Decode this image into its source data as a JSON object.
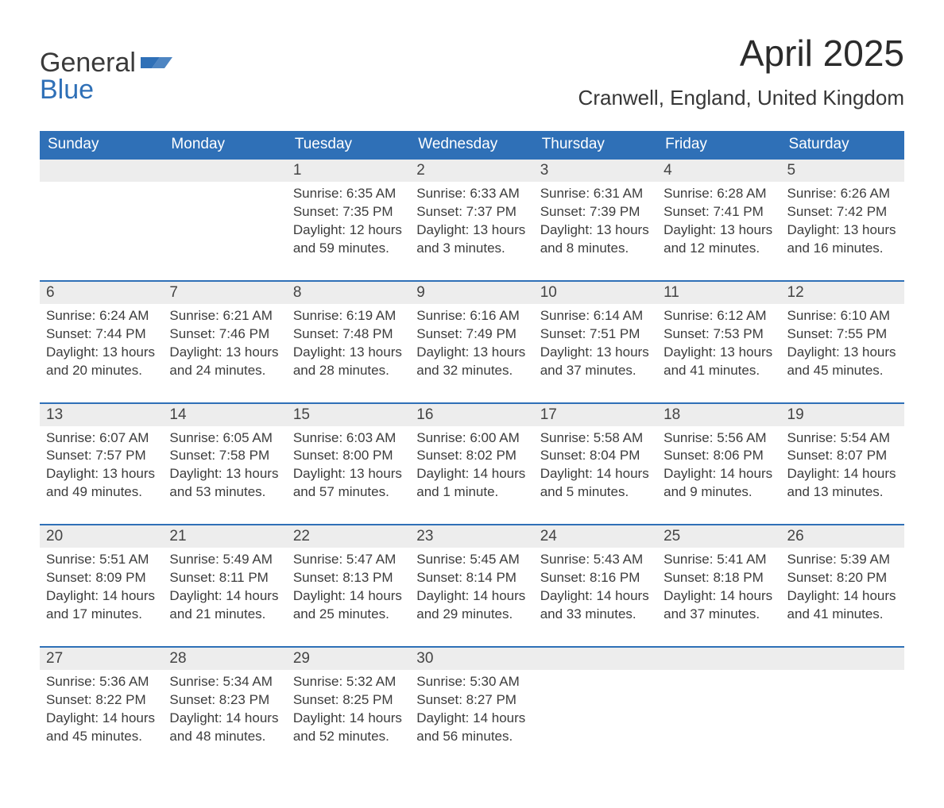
{
  "logo": {
    "text1": "General",
    "text2": "Blue",
    "icon_color": "#2f70b7"
  },
  "header": {
    "month": "April 2025",
    "location": "Cranwell, England, United Kingdom"
  },
  "colors": {
    "header_bg": "#2f70b7",
    "header_text": "#ffffff",
    "daynum_bg": "#ededed",
    "row_border": "#2f70b7",
    "body_text": "#3c3c3c"
  },
  "weekday_labels": [
    "Sunday",
    "Monday",
    "Tuesday",
    "Wednesday",
    "Thursday",
    "Friday",
    "Saturday"
  ],
  "weeks": [
    [
      {
        "day": "",
        "lines": []
      },
      {
        "day": "",
        "lines": []
      },
      {
        "day": "1",
        "lines": [
          "Sunrise: 6:35 AM",
          "Sunset: 7:35 PM",
          "Daylight: 12 hours and 59 minutes."
        ]
      },
      {
        "day": "2",
        "lines": [
          "Sunrise: 6:33 AM",
          "Sunset: 7:37 PM",
          "Daylight: 13 hours and 3 minutes."
        ]
      },
      {
        "day": "3",
        "lines": [
          "Sunrise: 6:31 AM",
          "Sunset: 7:39 PM",
          "Daylight: 13 hours and 8 minutes."
        ]
      },
      {
        "day": "4",
        "lines": [
          "Sunrise: 6:28 AM",
          "Sunset: 7:41 PM",
          "Daylight: 13 hours and 12 minutes."
        ]
      },
      {
        "day": "5",
        "lines": [
          "Sunrise: 6:26 AM",
          "Sunset: 7:42 PM",
          "Daylight: 13 hours and 16 minutes."
        ]
      }
    ],
    [
      {
        "day": "6",
        "lines": [
          "Sunrise: 6:24 AM",
          "Sunset: 7:44 PM",
          "Daylight: 13 hours and 20 minutes."
        ]
      },
      {
        "day": "7",
        "lines": [
          "Sunrise: 6:21 AM",
          "Sunset: 7:46 PM",
          "Daylight: 13 hours and 24 minutes."
        ]
      },
      {
        "day": "8",
        "lines": [
          "Sunrise: 6:19 AM",
          "Sunset: 7:48 PM",
          "Daylight: 13 hours and 28 minutes."
        ]
      },
      {
        "day": "9",
        "lines": [
          "Sunrise: 6:16 AM",
          "Sunset: 7:49 PM",
          "Daylight: 13 hours and 32 minutes."
        ]
      },
      {
        "day": "10",
        "lines": [
          "Sunrise: 6:14 AM",
          "Sunset: 7:51 PM",
          "Daylight: 13 hours and 37 minutes."
        ]
      },
      {
        "day": "11",
        "lines": [
          "Sunrise: 6:12 AM",
          "Sunset: 7:53 PM",
          "Daylight: 13 hours and 41 minutes."
        ]
      },
      {
        "day": "12",
        "lines": [
          "Sunrise: 6:10 AM",
          "Sunset: 7:55 PM",
          "Daylight: 13 hours and 45 minutes."
        ]
      }
    ],
    [
      {
        "day": "13",
        "lines": [
          "Sunrise: 6:07 AM",
          "Sunset: 7:57 PM",
          "Daylight: 13 hours and 49 minutes."
        ]
      },
      {
        "day": "14",
        "lines": [
          "Sunrise: 6:05 AM",
          "Sunset: 7:58 PM",
          "Daylight: 13 hours and 53 minutes."
        ]
      },
      {
        "day": "15",
        "lines": [
          "Sunrise: 6:03 AM",
          "Sunset: 8:00 PM",
          "Daylight: 13 hours and 57 minutes."
        ]
      },
      {
        "day": "16",
        "lines": [
          "Sunrise: 6:00 AM",
          "Sunset: 8:02 PM",
          "Daylight: 14 hours and 1 minute."
        ]
      },
      {
        "day": "17",
        "lines": [
          "Sunrise: 5:58 AM",
          "Sunset: 8:04 PM",
          "Daylight: 14 hours and 5 minutes."
        ]
      },
      {
        "day": "18",
        "lines": [
          "Sunrise: 5:56 AM",
          "Sunset: 8:06 PM",
          "Daylight: 14 hours and 9 minutes."
        ]
      },
      {
        "day": "19",
        "lines": [
          "Sunrise: 5:54 AM",
          "Sunset: 8:07 PM",
          "Daylight: 14 hours and 13 minutes."
        ]
      }
    ],
    [
      {
        "day": "20",
        "lines": [
          "Sunrise: 5:51 AM",
          "Sunset: 8:09 PM",
          "Daylight: 14 hours and 17 minutes."
        ]
      },
      {
        "day": "21",
        "lines": [
          "Sunrise: 5:49 AM",
          "Sunset: 8:11 PM",
          "Daylight: 14 hours and 21 minutes."
        ]
      },
      {
        "day": "22",
        "lines": [
          "Sunrise: 5:47 AM",
          "Sunset: 8:13 PM",
          "Daylight: 14 hours and 25 minutes."
        ]
      },
      {
        "day": "23",
        "lines": [
          "Sunrise: 5:45 AM",
          "Sunset: 8:14 PM",
          "Daylight: 14 hours and 29 minutes."
        ]
      },
      {
        "day": "24",
        "lines": [
          "Sunrise: 5:43 AM",
          "Sunset: 8:16 PM",
          "Daylight: 14 hours and 33 minutes."
        ]
      },
      {
        "day": "25",
        "lines": [
          "Sunrise: 5:41 AM",
          "Sunset: 8:18 PM",
          "Daylight: 14 hours and 37 minutes."
        ]
      },
      {
        "day": "26",
        "lines": [
          "Sunrise: 5:39 AM",
          "Sunset: 8:20 PM",
          "Daylight: 14 hours and 41 minutes."
        ]
      }
    ],
    [
      {
        "day": "27",
        "lines": [
          "Sunrise: 5:36 AM",
          "Sunset: 8:22 PM",
          "Daylight: 14 hours and 45 minutes."
        ]
      },
      {
        "day": "28",
        "lines": [
          "Sunrise: 5:34 AM",
          "Sunset: 8:23 PM",
          "Daylight: 14 hours and 48 minutes."
        ]
      },
      {
        "day": "29",
        "lines": [
          "Sunrise: 5:32 AM",
          "Sunset: 8:25 PM",
          "Daylight: 14 hours and 52 minutes."
        ]
      },
      {
        "day": "30",
        "lines": [
          "Sunrise: 5:30 AM",
          "Sunset: 8:27 PM",
          "Daylight: 14 hours and 56 minutes."
        ]
      },
      {
        "day": "",
        "lines": []
      },
      {
        "day": "",
        "lines": []
      },
      {
        "day": "",
        "lines": []
      }
    ]
  ]
}
